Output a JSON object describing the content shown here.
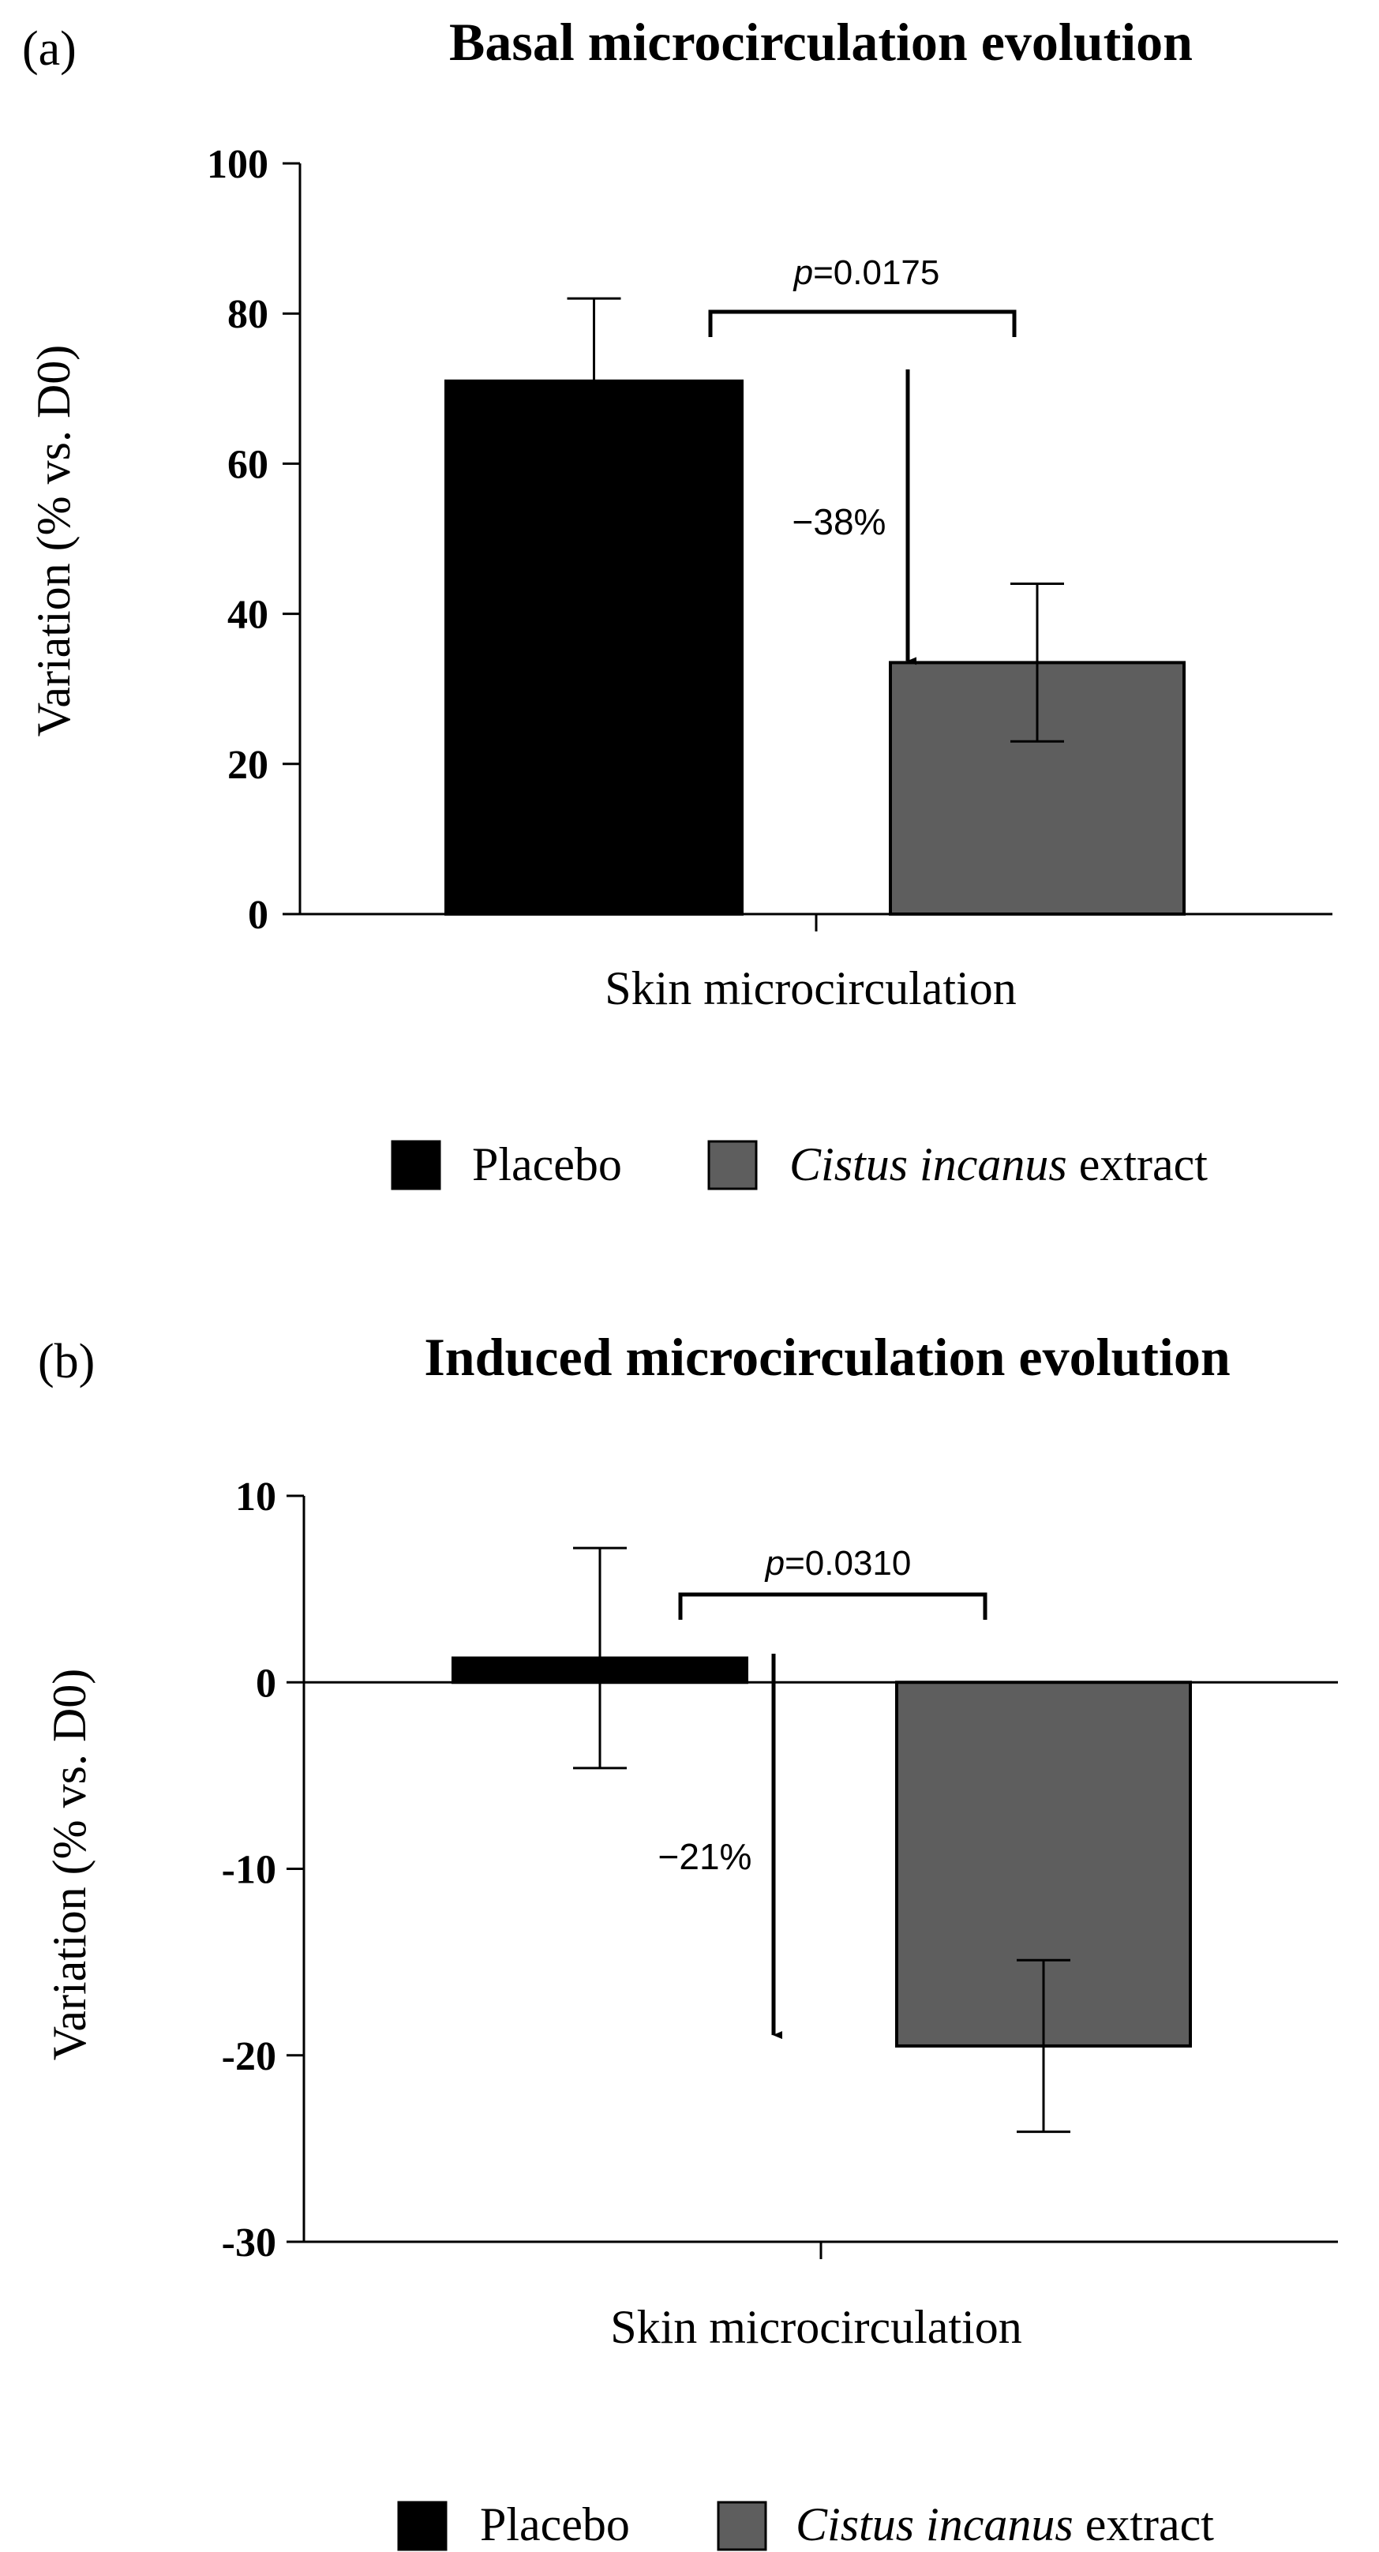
{
  "chart_data": [
    {
      "type": "bar",
      "panel_label": "(a)",
      "title": "Basal microcirculation evolution",
      "xlabel": "Skin microcirculation",
      "ylabel": "Variation (% vs. D0)",
      "ylim": [
        0,
        100
      ],
      "yticks": [
        0,
        20,
        40,
        60,
        80,
        100
      ],
      "series": [
        {
          "name": "Placebo",
          "value": 71,
          "error": 11,
          "color": "#000000"
        },
        {
          "name": "Cistus incanus extract",
          "value": 33.5,
          "error": 10.5,
          "color": "#5e5e5e"
        }
      ],
      "significance": {
        "p_label": "p",
        "p_value": "=0.0175"
      },
      "change_annotation": {
        "label": "−38%",
        "arrow_from": 72,
        "arrow_to": 33.5
      },
      "legend": [
        {
          "prefix": "",
          "italic": "",
          "suffix": "Placebo",
          "color": "#000000"
        },
        {
          "prefix": "",
          "italic": "Cistus incanus",
          "suffix": " extract",
          "color": "#5e5e5e"
        }
      ]
    },
    {
      "type": "bar",
      "panel_label": "(b)",
      "title": "Induced microcirculation evolution",
      "xlabel": "Skin microcirculation",
      "ylabel": "Variation (% vs. D0)",
      "ylim": [
        -30,
        10
      ],
      "yticks": [
        -30,
        -20,
        -10,
        0,
        10
      ],
      "series": [
        {
          "name": "Placebo",
          "value": 1.3,
          "error": 5.9,
          "color": "#000000"
        },
        {
          "name": "Cistus incanus extract",
          "value": -19.5,
          "error": 4.6,
          "color": "#5e5e5e"
        }
      ],
      "significance": {
        "p_label": "p",
        "p_value": "=0.0310"
      },
      "change_annotation": {
        "label": "−21%",
        "arrow_from": 1.4,
        "arrow_to": -19
      },
      "legend": [
        {
          "prefix": "",
          "italic": "",
          "suffix": "Placebo",
          "color": "#000000"
        },
        {
          "prefix": "",
          "italic": "Cistus incanus",
          "suffix": " extract",
          "color": "#5e5e5e"
        }
      ]
    }
  ]
}
